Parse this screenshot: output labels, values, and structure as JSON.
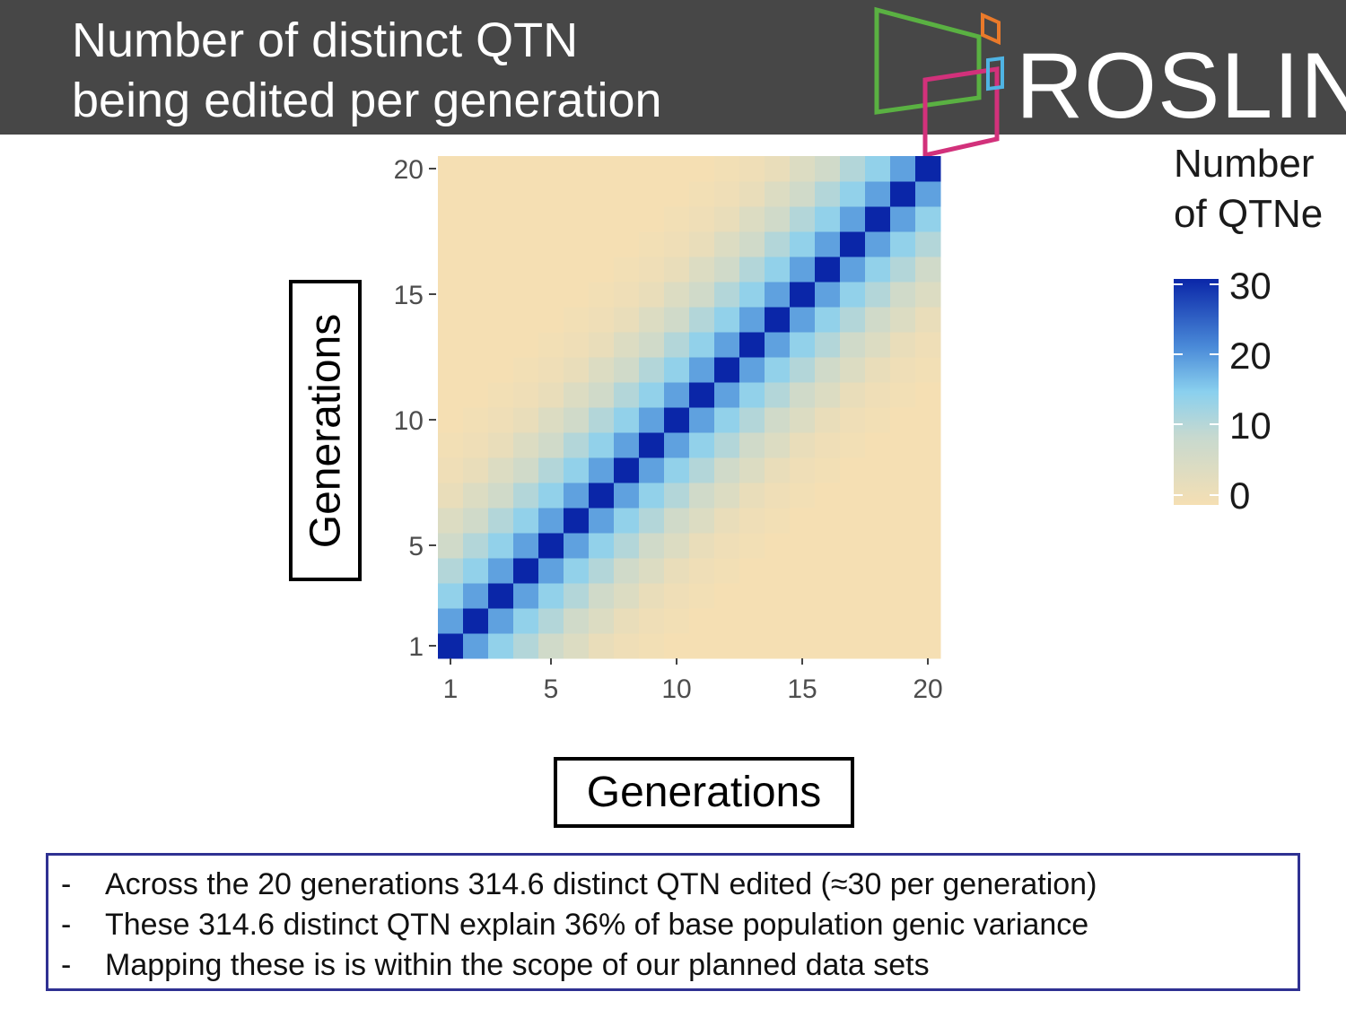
{
  "header": {
    "title_line1": "Number of distinct QTN",
    "title_line2": "being edited  per generation",
    "logo_text": "ROSLIN"
  },
  "chart_data": {
    "type": "heatmap",
    "x": [
      1,
      2,
      3,
      4,
      5,
      6,
      7,
      8,
      9,
      10,
      11,
      12,
      13,
      14,
      15,
      16,
      17,
      18,
      19,
      20
    ],
    "y": [
      1,
      2,
      3,
      4,
      5,
      6,
      7,
      8,
      9,
      10,
      11,
      12,
      13,
      14,
      15,
      16,
      17,
      18,
      19,
      20
    ],
    "xlabel": "Generations",
    "ylabel": "Generations",
    "x_ticks": [
      1,
      5,
      10,
      15,
      20
    ],
    "y_ticks": [
      1,
      5,
      10,
      15,
      20
    ],
    "legend_title": "Number of QTNe",
    "legend_ticks": [
      0,
      10,
      20,
      30
    ],
    "color_scale": [
      "#f5dfb3",
      "#c7d9cf",
      "#8ad0ee",
      "#4a8ad8",
      "#0a26a8"
    ],
    "value_range": [
      0,
      30
    ],
    "diagonal_value": 30,
    "offset_values": [
      30,
      20,
      14,
      10,
      6,
      4,
      2,
      1,
      0.5,
      0
    ],
    "grid": false,
    "legend_position": "right"
  },
  "notes": [
    "Across the 20 generations 314.6 distinct QTN edited (≈30 per generation)",
    "These 314.6 distinct QTN explain 36% of base population genic variance",
    "Mapping these is is within the scope of our planned data sets"
  ],
  "note_bullet": "-"
}
